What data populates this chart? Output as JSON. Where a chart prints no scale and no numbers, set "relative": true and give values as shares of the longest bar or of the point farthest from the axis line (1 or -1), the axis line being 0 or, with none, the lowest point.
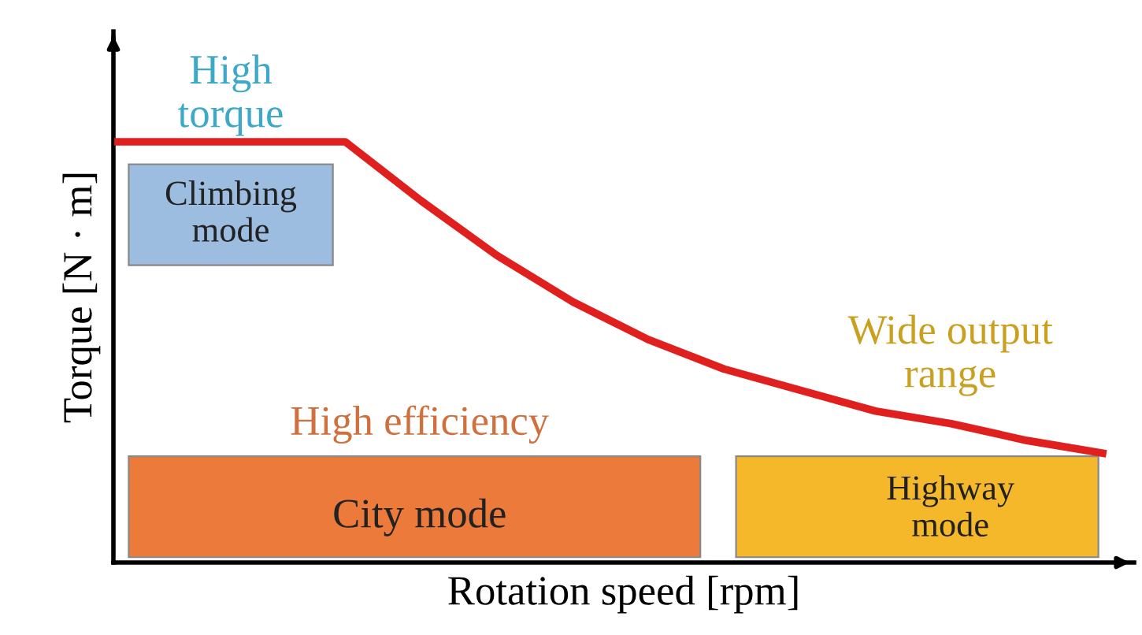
{
  "chart_data": {
    "type": "line",
    "relative": true,
    "xlabel": "Rotation speed [rpm]",
    "ylabel": "Torque [N · m]",
    "categories": [
      null,
      null,
      null,
      null,
      null,
      null,
      null,
      null,
      null,
      null,
      null,
      null,
      null,
      null
    ],
    "series": [
      {
        "color": "#e0201f",
        "values": [
          1,
          1,
          1,
          1,
          0.86,
          0.73,
          0.62,
          0.53,
          0.46,
          0.41,
          0.36,
          0.33,
          0.29,
          0.26
        ]
      }
    ],
    "annotations": [
      "High\ntorque",
      "Climbing\nmode",
      "High efficiency",
      "City mode",
      "Wide output\nrange",
      "Highway\nmode"
    ],
    "legend": false,
    "marker": "none",
    "line_style": "solid"
  }
}
